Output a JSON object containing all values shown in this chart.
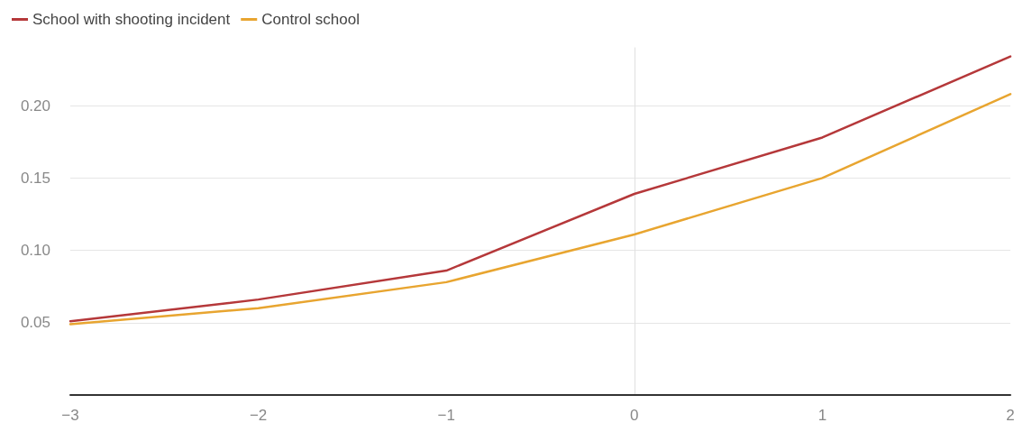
{
  "chart_data": {
    "type": "line",
    "x": [
      -3,
      -2,
      -1,
      0,
      1,
      2
    ],
    "series": [
      {
        "name": "School with shooting incident",
        "color": "#b5383a",
        "values": [
          0.051,
          0.066,
          0.086,
          0.139,
          0.178,
          0.234
        ]
      },
      {
        "name": "Control school",
        "color": "#e8a530",
        "values": [
          0.049,
          0.06,
          0.078,
          0.111,
          0.15,
          0.208
        ]
      }
    ],
    "xlim": [
      -3,
      2
    ],
    "xticks": [
      -3,
      -2,
      -1,
      0,
      1,
      2
    ],
    "ylim": [
      0,
      0.24
    ],
    "yticks": [
      0.05,
      {
        "value": 0.1,
        "label": "0.10"
      },
      0.15,
      {
        "value": 0.2,
        "label": "0.20"
      }
    ],
    "grid": "y",
    "legend": "top left",
    "marker": "none",
    "line_style": "solid"
  }
}
